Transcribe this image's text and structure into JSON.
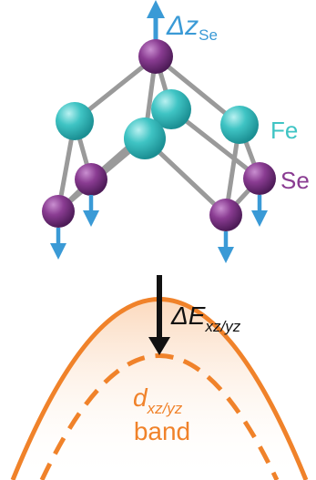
{
  "labels": {
    "delta_z": "Δz",
    "delta_z_sub": "Se",
    "fe": "Fe",
    "se": "Se",
    "delta_e": "ΔE",
    "delta_e_sub": "xz/yz",
    "band_d": "d",
    "band_d_sub": "xz/yz",
    "band_word": "band"
  },
  "colors": {
    "fe": "#3fc4c4",
    "se": "#8a3c92",
    "arrow": "#3a9ad6",
    "band": "#f0822a",
    "band_fill": "#fde8d6",
    "bond": "#9a9a9a",
    "text_dark": "#111111"
  },
  "icons": {
    "spin_arrow": "up-arrow-icon",
    "displacement_arrow": "down-arrow-icon"
  }
}
